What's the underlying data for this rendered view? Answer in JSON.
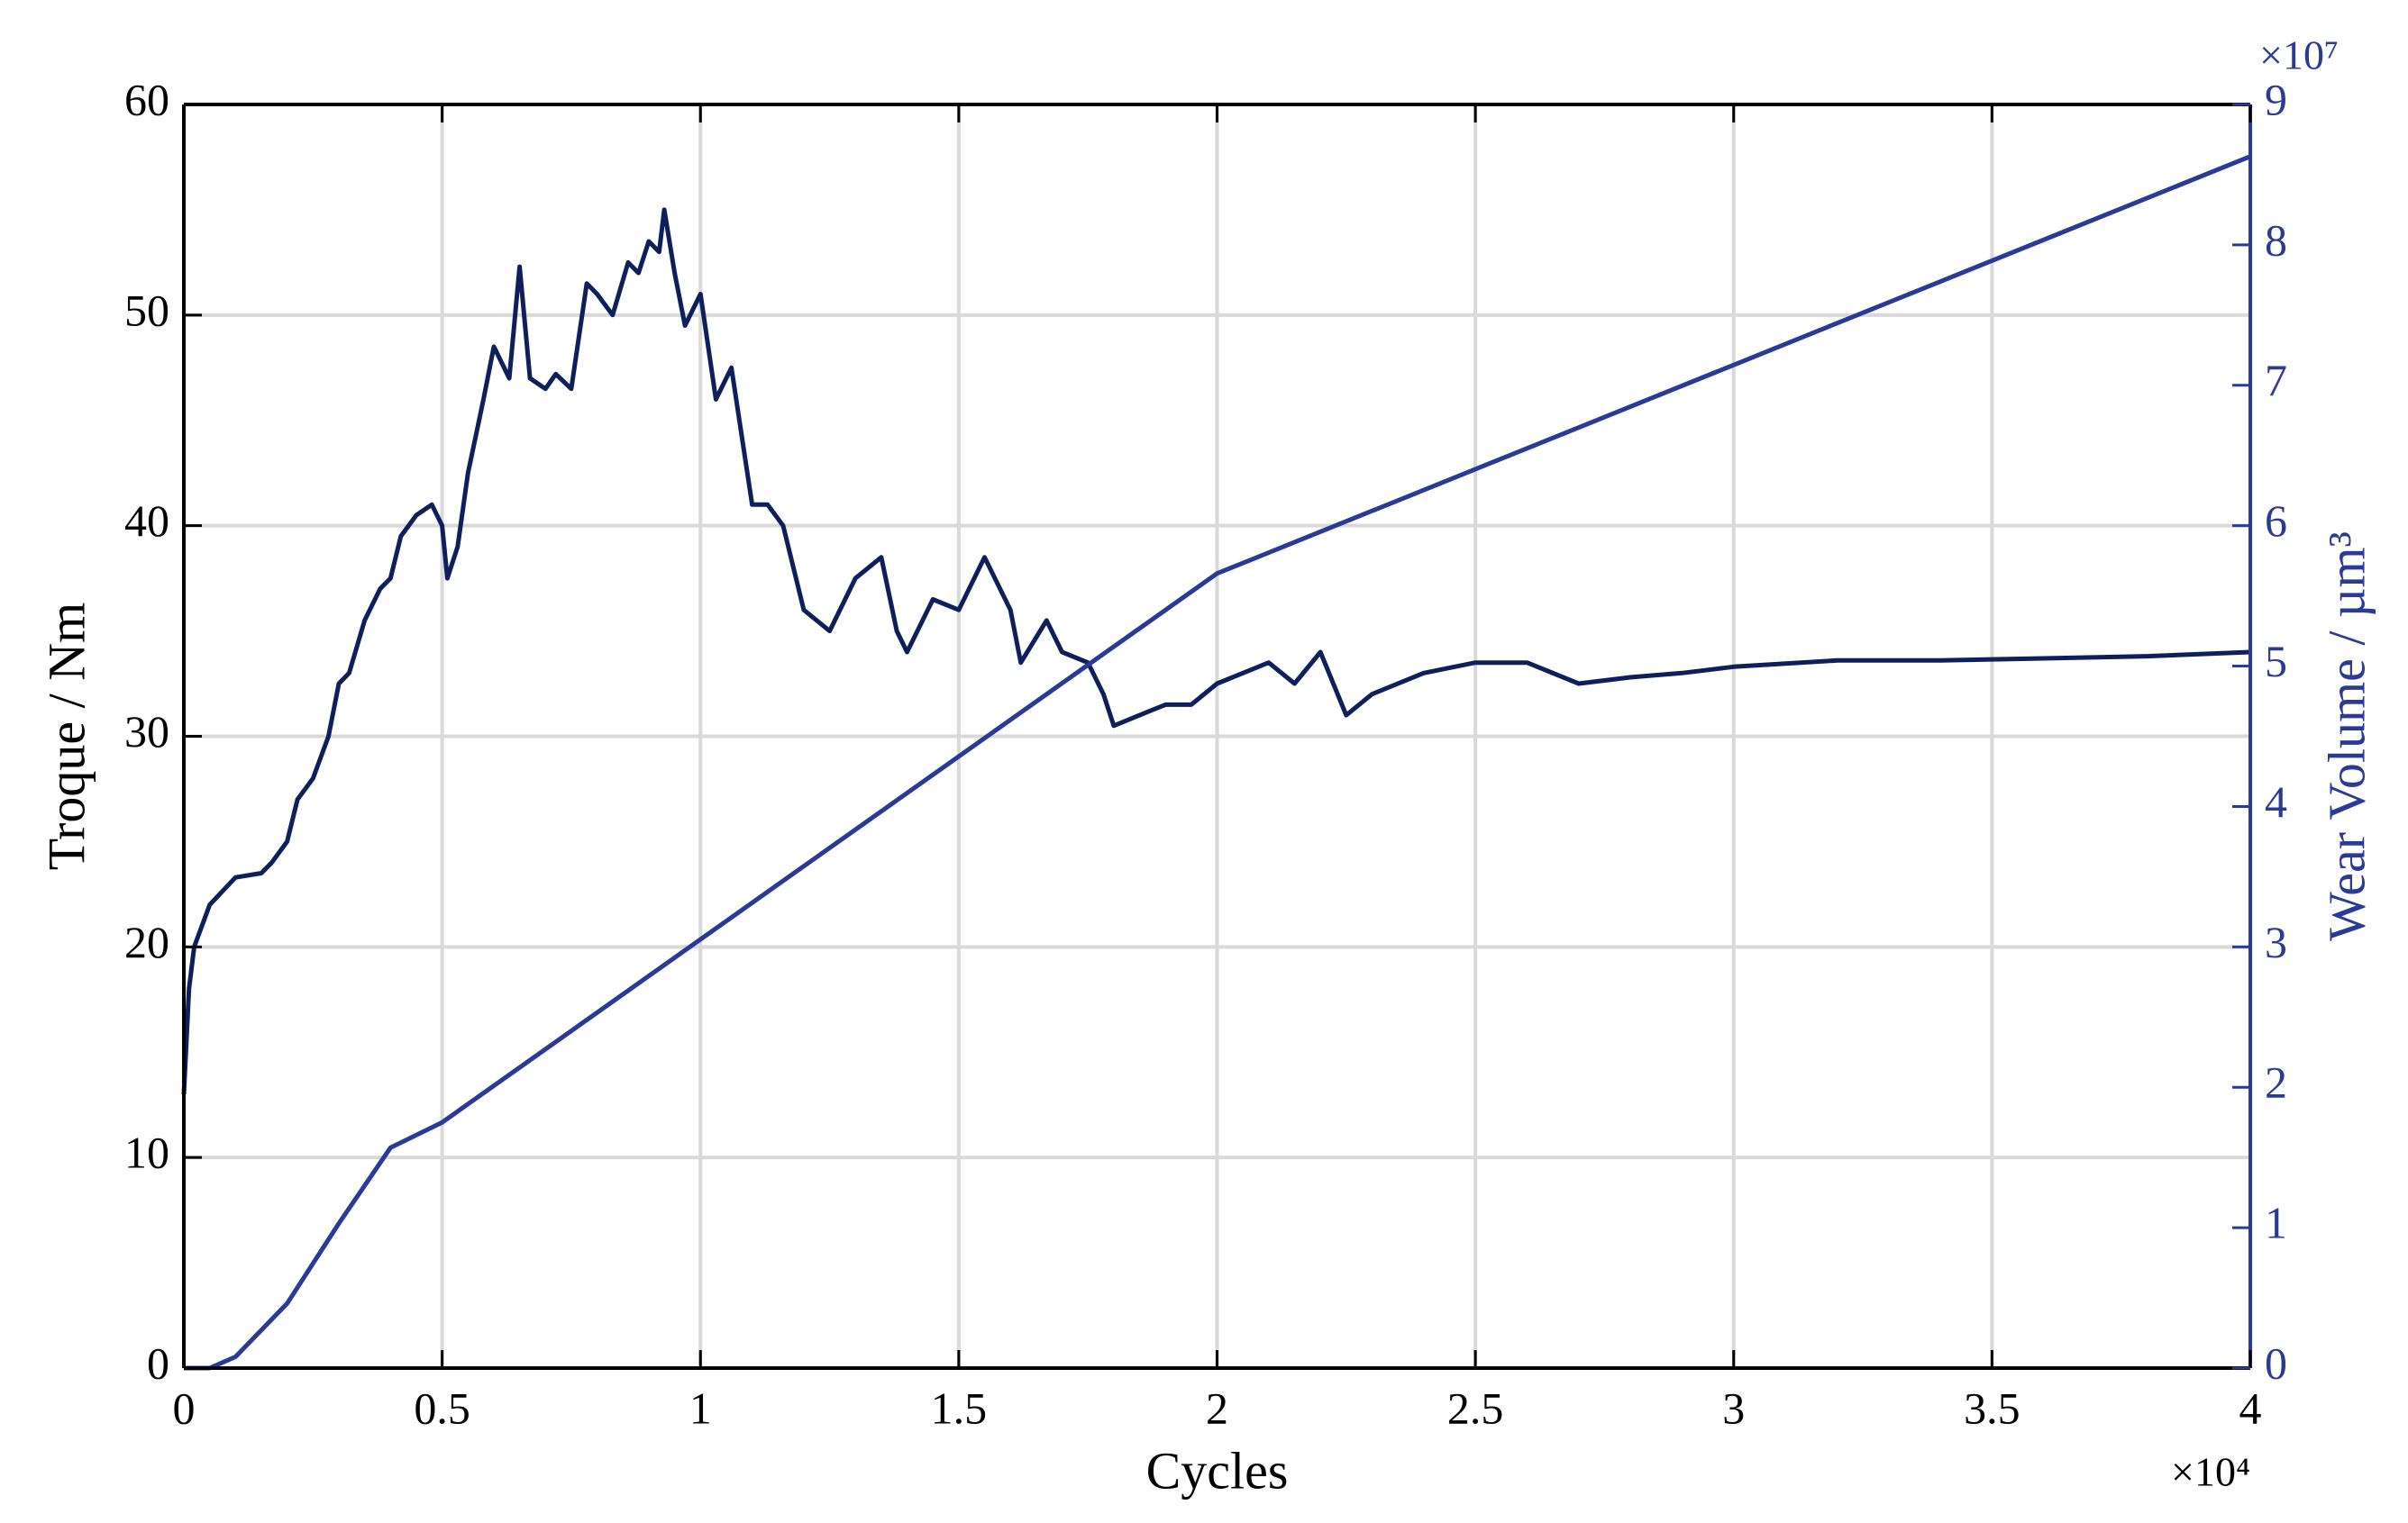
{
  "chart_data": {
    "type": "line",
    "xlabel": "Cycles",
    "ylabel": "Troque / Nm",
    "y2label": "Wear Volume / µm³",
    "x_multiplier": "×10⁴",
    "y2_multiplier": "×10⁷",
    "xlim": [
      0,
      4
    ],
    "xticks": [
      0,
      0.5,
      1,
      1.5,
      2,
      2.5,
      3,
      3.5,
      4
    ],
    "ylim": [
      0,
      60
    ],
    "yticks": [
      0,
      10,
      20,
      30,
      40,
      50,
      60
    ],
    "y2lim": [
      0,
      9
    ],
    "y2ticks": [
      0,
      1,
      2,
      3,
      4,
      5,
      6,
      7,
      8,
      9
    ],
    "grid": true,
    "y2color": "#2b3a96",
    "series": [
      {
        "name": "Torque",
        "color": "#0f1f5c",
        "x": [
          0,
          0.01,
          0.02,
          0.05,
          0.1,
          0.15,
          0.17,
          0.2,
          0.22,
          0.25,
          0.28,
          0.3,
          0.32,
          0.35,
          0.38,
          0.4,
          0.42,
          0.45,
          0.48,
          0.5,
          0.51,
          0.53,
          0.55,
          0.58,
          0.6,
          0.63,
          0.65,
          0.67,
          0.7,
          0.72,
          0.75,
          0.78,
          0.8,
          0.83,
          0.86,
          0.88,
          0.9,
          0.92,
          0.93,
          0.95,
          0.97,
          1.0,
          1.03,
          1.06,
          1.1,
          1.13,
          1.16,
          1.2,
          1.25,
          1.3,
          1.35,
          1.38,
          1.4,
          1.45,
          1.5,
          1.55,
          1.6,
          1.62,
          1.67,
          1.7,
          1.75,
          1.78,
          1.8,
          1.85,
          1.9,
          1.95,
          2.0,
          2.05,
          2.1,
          2.15,
          2.2,
          2.25,
          2.3,
          2.4,
          2.5,
          2.6,
          2.7,
          2.8,
          2.9,
          3.0,
          3.2,
          3.4,
          3.6,
          3.8,
          4.0
        ],
        "values": [
          13,
          18,
          20,
          22,
          23.3,
          23.5,
          24,
          25,
          27,
          28,
          30,
          32.5,
          33,
          35.5,
          37,
          37.5,
          39.5,
          40.5,
          41,
          40,
          37.5,
          39,
          42.5,
          46,
          48.5,
          47,
          52.3,
          47,
          46.5,
          47.2,
          46.5,
          51.5,
          51,
          50,
          52.5,
          52,
          53.5,
          53,
          55,
          52,
          49.5,
          51,
          46,
          47.5,
          41,
          41,
          40,
          36,
          35,
          37.5,
          38.5,
          35,
          34,
          36.5,
          36,
          38.5,
          36,
          33.5,
          35.5,
          34,
          33.5,
          32,
          30.5,
          31,
          31.5,
          31.5,
          32.5,
          33,
          33.5,
          32.5,
          34,
          31,
          32,
          33,
          33.5,
          33.5,
          32.5,
          32.8,
          33,
          33.3,
          33.6,
          33.6,
          33.7,
          33.8,
          34
        ]
      },
      {
        "name": "Wear Volume",
        "color": "#2b3a96",
        "axis": "y2",
        "x": [
          0,
          0.05,
          0.1,
          0.2,
          0.3,
          0.4,
          0.5,
          2.0,
          4.0
        ],
        "values": [
          0,
          0,
          0.08,
          0.46,
          1.03,
          1.57,
          1.75,
          5.66,
          8.63
        ]
      }
    ]
  }
}
